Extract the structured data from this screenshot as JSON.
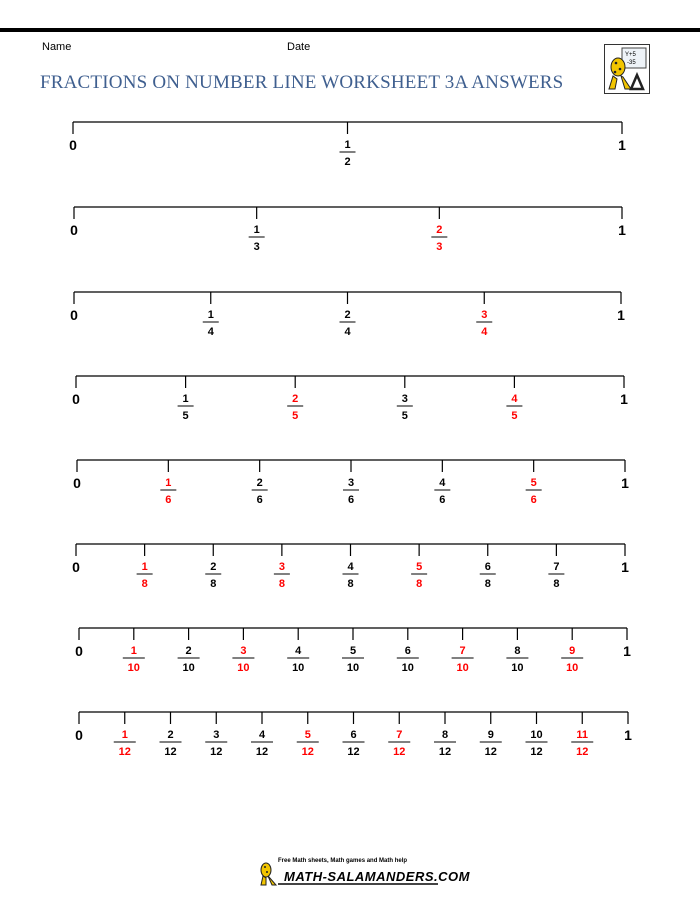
{
  "header": {
    "name_label": "Name",
    "date_label": "Date",
    "title": "FRACTIONS ON NUMBER LINE WORKSHEET 3A ANSWERS",
    "logo_text_1": "Y+5",
    "logo_text_2": "-35"
  },
  "colors": {
    "title": "#3f5f8f",
    "answer": "#ff0000",
    "given": "#000000"
  },
  "number_lines": [
    {
      "denominator": 2,
      "start_label": "0",
      "end_label": "1",
      "fractions": [
        {
          "num": "1",
          "den": "2",
          "answer": false
        }
      ]
    },
    {
      "denominator": 3,
      "start_label": "0",
      "end_label": "1",
      "fractions": [
        {
          "num": "1",
          "den": "3",
          "answer": false
        },
        {
          "num": "2",
          "den": "3",
          "answer": true
        }
      ]
    },
    {
      "denominator": 4,
      "start_label": "0",
      "end_label": "1",
      "fractions": [
        {
          "num": "1",
          "den": "4",
          "answer": false
        },
        {
          "num": "2",
          "den": "4",
          "answer": false
        },
        {
          "num": "3",
          "den": "4",
          "answer": true
        }
      ]
    },
    {
      "denominator": 5,
      "start_label": "0",
      "end_label": "1",
      "fractions": [
        {
          "num": "1",
          "den": "5",
          "answer": false
        },
        {
          "num": "2",
          "den": "5",
          "answer": true
        },
        {
          "num": "3",
          "den": "5",
          "answer": false
        },
        {
          "num": "4",
          "den": "5",
          "answer": true
        }
      ]
    },
    {
      "denominator": 6,
      "start_label": "0",
      "end_label": "1",
      "fractions": [
        {
          "num": "1",
          "den": "6",
          "answer": true
        },
        {
          "num": "2",
          "den": "6",
          "answer": false
        },
        {
          "num": "3",
          "den": "6",
          "answer": false
        },
        {
          "num": "4",
          "den": "6",
          "answer": false
        },
        {
          "num": "5",
          "den": "6",
          "answer": true
        }
      ]
    },
    {
      "denominator": 8,
      "start_label": "0",
      "end_label": "1",
      "fractions": [
        {
          "num": "1",
          "den": "8",
          "answer": true
        },
        {
          "num": "2",
          "den": "8",
          "answer": false
        },
        {
          "num": "3",
          "den": "8",
          "answer": true
        },
        {
          "num": "4",
          "den": "8",
          "answer": false
        },
        {
          "num": "5",
          "den": "8",
          "answer": true
        },
        {
          "num": "6",
          "den": "8",
          "answer": false
        },
        {
          "num": "7",
          "den": "8",
          "answer": false
        }
      ]
    },
    {
      "denominator": 10,
      "start_label": "0",
      "end_label": "1",
      "fractions": [
        {
          "num": "1",
          "den": "10",
          "answer": true
        },
        {
          "num": "2",
          "den": "10",
          "answer": false
        },
        {
          "num": "3",
          "den": "10",
          "answer": true
        },
        {
          "num": "4",
          "den": "10",
          "answer": false
        },
        {
          "num": "5",
          "den": "10",
          "answer": false
        },
        {
          "num": "6",
          "den": "10",
          "answer": false
        },
        {
          "num": "7",
          "den": "10",
          "answer": true
        },
        {
          "num": "8",
          "den": "10",
          "answer": false
        },
        {
          "num": "9",
          "den": "10",
          "answer": true
        }
      ]
    },
    {
      "denominator": 12,
      "start_label": "0",
      "end_label": "1",
      "fractions": [
        {
          "num": "1",
          "den": "12",
          "answer": true
        },
        {
          "num": "2",
          "den": "12",
          "answer": false
        },
        {
          "num": "3",
          "den": "12",
          "answer": false
        },
        {
          "num": "4",
          "den": "12",
          "answer": false
        },
        {
          "num": "5",
          "den": "12",
          "answer": true
        },
        {
          "num": "6",
          "den": "12",
          "answer": false
        },
        {
          "num": "7",
          "den": "12",
          "answer": true
        },
        {
          "num": "8",
          "den": "12",
          "answer": false
        },
        {
          "num": "9",
          "den": "12",
          "answer": false
        },
        {
          "num": "10",
          "den": "12",
          "answer": false
        },
        {
          "num": "11",
          "den": "12",
          "answer": true
        }
      ]
    }
  ],
  "footer": {
    "tagline": "Free Math sheets, Math games and Math help",
    "brand": "MATH-SALAMANDERS.COM"
  }
}
